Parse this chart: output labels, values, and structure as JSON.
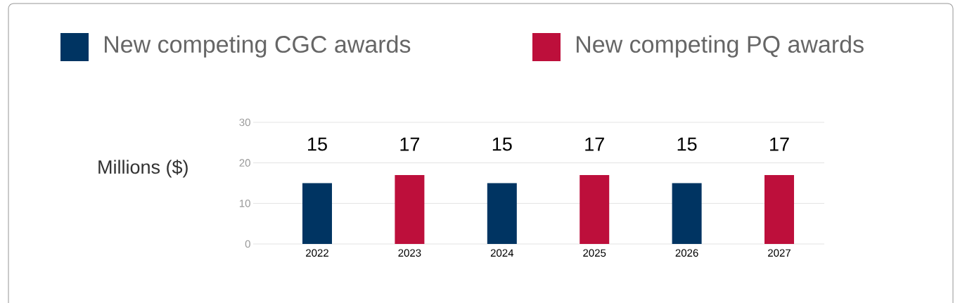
{
  "chart_data": {
    "type": "bar",
    "ylabel": "Millions ($)",
    "categories": [
      "2022",
      "2023",
      "2024",
      "2025",
      "2026",
      "2027"
    ],
    "series": [
      {
        "name": "New competing CGC awards",
        "color": "#003462",
        "values": [
          15,
          null,
          15,
          null,
          15,
          null
        ]
      },
      {
        "name": "New competing PQ awards",
        "color": "#bd0f3b",
        "values": [
          null,
          17,
          null,
          17,
          null,
          17
        ]
      }
    ],
    "ylim": [
      0,
      30
    ],
    "yticks": [
      0,
      10,
      20,
      30
    ],
    "grid": "y",
    "legend": "top",
    "data_labels": true
  }
}
